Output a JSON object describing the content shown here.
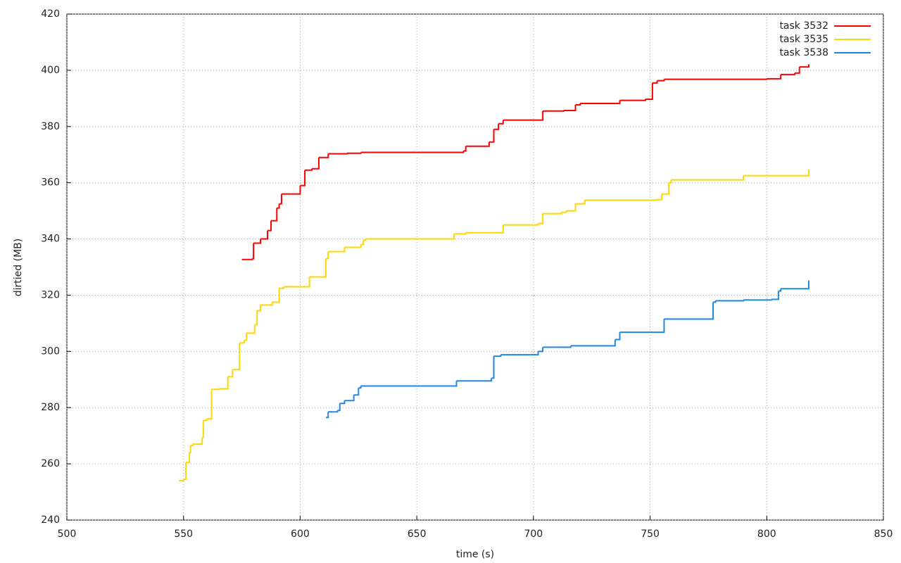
{
  "chart_data": {
    "type": "line",
    "step": true,
    "x_label": "time (s)",
    "y_label": "dirtied (MB)",
    "xlim": [
      500,
      850
    ],
    "xticks": [
      500,
      550,
      600,
      650,
      700,
      750,
      800,
      850
    ],
    "ylim": [
      240,
      420
    ],
    "yticks": [
      240,
      260,
      280,
      300,
      320,
      340,
      360,
      380,
      400,
      420
    ],
    "grid": true,
    "legend": "top-right",
    "series": [
      {
        "name": "task 3532",
        "color": "#ff0000",
        "x": [
          575,
          579.5,
          580,
          583,
          586,
          587.5,
          590,
          591,
          592,
          596,
          600,
          602,
          605,
          608,
          612,
          620,
          626,
          665,
          670,
          671,
          681,
          683,
          685,
          687,
          704,
          713,
          718,
          720,
          737,
          748,
          751,
          753,
          756,
          800,
          806,
          812,
          814,
          818
        ],
        "values": [
          332.7,
          333,
          338.5,
          340,
          343,
          346.5,
          351,
          352.5,
          356,
          356,
          359,
          364.5,
          365,
          369,
          370.3,
          370.5,
          370.8,
          370.8,
          371.3,
          373,
          374.5,
          379,
          381,
          382.3,
          385.5,
          385.7,
          387.7,
          388.2,
          389.3,
          389.7,
          395.5,
          396.3,
          396.8,
          397,
          398.5,
          399,
          401.2,
          401.4
        ]
      },
      {
        "name": "task 3535",
        "color": "#ffd700",
        "x": [
          548,
          550,
          551,
          552.5,
          553,
          554,
          558,
          558.5,
          560,
          562,
          565,
          569,
          571,
          574,
          576,
          577,
          580.5,
          581.5,
          583,
          588,
          591,
          593,
          604,
          611,
          612,
          619,
          626,
          627,
          628,
          666,
          671,
          687,
          702,
          704,
          712,
          714,
          718,
          722,
          753,
          755,
          758,
          759,
          790,
          818
        ],
        "values": [
          254,
          254.5,
          260.5,
          264,
          266.5,
          267,
          269.5,
          275.5,
          276,
          286.5,
          286.7,
          291,
          293.5,
          303,
          304,
          306.5,
          309.5,
          314.5,
          316.5,
          317.5,
          322.5,
          323,
          326.5,
          333,
          335.5,
          337,
          338,
          339.5,
          340,
          341.8,
          342.2,
          345,
          345.5,
          349,
          349.5,
          350,
          352.5,
          353.8,
          354,
          356,
          360,
          361,
          362.5,
          364
        ]
      },
      {
        "name": "task 3538",
        "color": "#1e88e5",
        "x": [
          611,
          612,
          616,
          617,
          619,
          623,
          625,
          626,
          667,
          682,
          683,
          686,
          702,
          704,
          716,
          735,
          737,
          756,
          777,
          778,
          790,
          802,
          805,
          806,
          818
        ],
        "values": [
          276.5,
          278.5,
          279,
          281.5,
          282.5,
          284.5,
          287,
          287.7,
          289.5,
          290.5,
          298.3,
          298.8,
          300,
          301.5,
          302,
          304.2,
          306.8,
          311.5,
          317.5,
          318,
          318.3,
          318.5,
          321.5,
          322.3,
          324.5
        ]
      }
    ]
  }
}
